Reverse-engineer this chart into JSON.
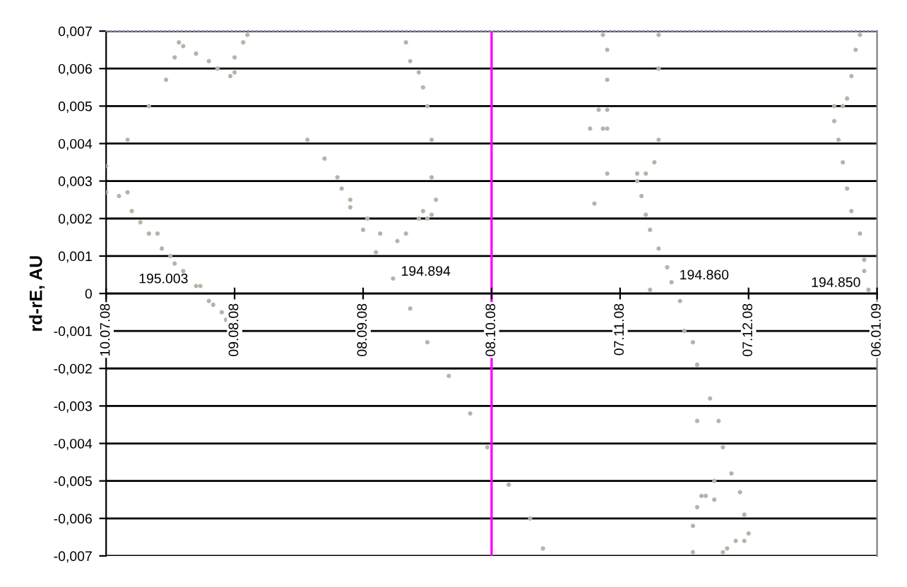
{
  "chart_data": {
    "type": "scatter",
    "ylabel": "rd-rE, AU",
    "marker": "circle",
    "grid": "y",
    "xlim": [
      "2008-07-10",
      "2009-01-06"
    ],
    "xticks": [
      {
        "value": "2008-07-10",
        "label": "10.07.08"
      },
      {
        "value": "2008-08-09",
        "label": "09.08.08"
      },
      {
        "value": "2008-09-08",
        "label": "08.09.08"
      },
      {
        "value": "2008-10-08",
        "label": "08.10.08"
      },
      {
        "value": "2008-11-07",
        "label": "07.11.08"
      },
      {
        "value": "2008-12-07",
        "label": "07.12.08"
      },
      {
        "value": "2009-01-06",
        "label": "06.01.09"
      }
    ],
    "ylim": [
      -0.007,
      0.007
    ],
    "yticks": [
      {
        "value": -0.007,
        "label": "-0,007"
      },
      {
        "value": -0.006,
        "label": "-0,006"
      },
      {
        "value": -0.005,
        "label": "-0,005"
      },
      {
        "value": -0.004,
        "label": "-0,004"
      },
      {
        "value": -0.003,
        "label": "-0,003"
      },
      {
        "value": -0.002,
        "label": "-0,002"
      },
      {
        "value": -0.001,
        "label": "-0,001"
      },
      {
        "value": 0,
        "label": "0"
      },
      {
        "value": 0.001,
        "label": "0,001"
      },
      {
        "value": 0.002,
        "label": "0,002"
      },
      {
        "value": 0.003,
        "label": "0,003"
      },
      {
        "value": 0.004,
        "label": "0,004"
      },
      {
        "value": 0.005,
        "label": "0,005"
      },
      {
        "value": 0.006,
        "label": "0,006"
      },
      {
        "value": 0.007,
        "label": "0,007"
      }
    ],
    "ref_lines": [
      {
        "axis": "x",
        "value": "2008-10-08",
        "color": "#ff00ff"
      }
    ],
    "annotations": [
      {
        "text": "195.003",
        "x": "2008-07-31",
        "y": 0.0002
      },
      {
        "text": "194.894",
        "x": "2008-09-15",
        "y": 0.0004
      },
      {
        "text": "194.860",
        "x": "2008-11-19",
        "y": 0.0003
      },
      {
        "text": "194.850",
        "x": "2009-01-04",
        "y": 0.0001
      }
    ],
    "series": [
      {
        "color": "#b4b4a8",
        "x": [
          "2008-07-10",
          "2008-07-15",
          "2008-07-20",
          "2008-07-24",
          "2008-07-26",
          "2008-07-27",
          "2008-07-28",
          "2008-07-31",
          "2008-08-03",
          "2008-08-05",
          "2008-08-08",
          "2008-08-09",
          "2008-08-09",
          "2008-08-11",
          "2008-08-12"
        ],
        "values": [
          0.0034,
          0.0041,
          0.005,
          0.0057,
          0.0063,
          0.0067,
          0.0066,
          0.0064,
          0.0062,
          0.006,
          0.0058,
          0.0059,
          0.0063,
          0.0067,
          0.0069
        ]
      },
      {
        "color": "#b4b4a8",
        "x": [
          "2008-07-10",
          "2008-07-13",
          "2008-07-15",
          "2008-07-16",
          "2008-07-18",
          "2008-07-20",
          "2008-07-22",
          "2008-07-23",
          "2008-07-25",
          "2008-07-26",
          "2008-07-28",
          "2008-07-31",
          "2008-08-01",
          "2008-08-03",
          "2008-08-04",
          "2008-08-06",
          "2008-08-07"
        ],
        "values": [
          0.0027,
          0.0026,
          0.0027,
          0.0022,
          0.0019,
          0.0016,
          0.0016,
          0.0012,
          0.001,
          0.0008,
          0.0006,
          0.0002,
          0.0002,
          -0.0002,
          -0.0003,
          -0.0005,
          -0.0007
        ]
      },
      {
        "color": "#b4b4a8",
        "x": [
          "2008-08-26",
          "2008-08-30",
          "2008-09-02",
          "2008-09-05",
          "2008-09-09",
          "2008-09-12",
          "2008-09-16",
          "2008-09-18",
          "2008-09-21",
          "2008-09-22",
          "2008-09-23",
          "2008-09-24",
          "2008-09-25",
          "2008-09-24",
          "2008-09-24",
          "2008-09-23",
          "2008-09-22",
          "2008-09-21",
          "2008-09-19",
          "2008-09-18"
        ],
        "values": [
          0.0041,
          0.0036,
          0.0031,
          0.0025,
          0.002,
          0.0016,
          0.0014,
          0.0016,
          0.002,
          0.0022,
          0.002,
          0.0021,
          0.0025,
          0.0031,
          0.0041,
          0.005,
          0.0055,
          0.0059,
          0.0062,
          0.0067
        ]
      },
      {
        "color": "#b4b4a8",
        "x": [
          "2008-09-03",
          "2008-09-05",
          "2008-09-08",
          "2008-09-11",
          "2008-09-15",
          "2008-09-19",
          "2008-09-23",
          "2008-09-28",
          "2008-10-03",
          "2008-10-07",
          "2008-10-12",
          "2008-10-17",
          "2008-10-20"
        ],
        "values": [
          0.0028,
          0.0023,
          0.0017,
          0.0011,
          0.0004,
          -0.0004,
          -0.0013,
          -0.0022,
          -0.0032,
          -0.0041,
          -0.0051,
          -0.006,
          -0.0068
        ]
      },
      {
        "color": "#b4b4a8",
        "x": [
          "2008-11-03",
          "2008-11-04",
          "2008-11-04",
          "2008-11-04",
          "2008-11-04",
          "2008-11-03",
          "2008-10-31",
          "2008-11-02",
          "2008-11-04",
          "2008-11-01"
        ],
        "values": [
          0.0069,
          0.0065,
          0.0057,
          0.0049,
          0.0044,
          0.0044,
          0.0044,
          0.0049,
          0.0032,
          0.0024
        ]
      },
      {
        "color": "#b4b4a8",
        "x": [
          "2008-11-16",
          "2008-11-16",
          "2008-11-16",
          "2008-11-15",
          "2008-11-13",
          "2008-11-11",
          "2008-11-11",
          "2008-11-12",
          "2008-11-13",
          "2008-11-14",
          "2008-11-16",
          "2008-11-18",
          "2008-11-19",
          "2008-11-21",
          "2008-11-22",
          "2008-11-24",
          "2008-11-25",
          "2008-11-28",
          "2008-11-30",
          "2008-12-01",
          "2008-12-03",
          "2008-12-05",
          "2008-12-06",
          "2008-12-07",
          "2008-12-06",
          "2008-12-04",
          "2008-12-02",
          "2008-12-01"
        ],
        "values": [
          0.0069,
          0.006,
          0.0041,
          0.0035,
          0.0032,
          0.0032,
          0.003,
          0.0026,
          0.0021,
          0.0017,
          0.0012,
          0.0007,
          0.0003,
          -0.0002,
          -0.001,
          -0.0013,
          -0.0019,
          -0.0028,
          -0.0034,
          -0.0041,
          -0.0048,
          -0.0053,
          -0.0059,
          -0.0064,
          -0.0066,
          -0.0066,
          -0.0068,
          -0.0069
        ]
      },
      {
        "color": "#b4b4a8",
        "x": [
          "2008-11-14",
          "2008-11-25",
          "2008-11-29",
          "2008-11-24",
          "2008-11-24",
          "2008-11-25",
          "2008-11-26",
          "2008-11-27",
          "2008-11-29"
        ],
        "values": [
          0.0001,
          -0.0034,
          -0.005,
          -0.0069,
          -0.0062,
          -0.0057,
          -0.0054,
          -0.0054,
          -0.0055
        ]
      },
      {
        "color": "#b4b4a8",
        "x": [
          "2009-01-02",
          "2009-01-01",
          "2008-12-31",
          "2008-12-30",
          "2008-12-29",
          "2008-12-27",
          "2008-12-27",
          "2008-12-28",
          "2008-12-29",
          "2008-12-30",
          "2008-12-31",
          "2009-01-02",
          "2009-01-03",
          "2009-01-03",
          "2009-01-04"
        ],
        "values": [
          0.0069,
          0.0065,
          0.0058,
          0.0052,
          0.005,
          0.005,
          0.0046,
          0.0041,
          0.0035,
          0.0028,
          0.0022,
          0.0016,
          0.0009,
          0.0006,
          0.0001
        ]
      }
    ]
  }
}
